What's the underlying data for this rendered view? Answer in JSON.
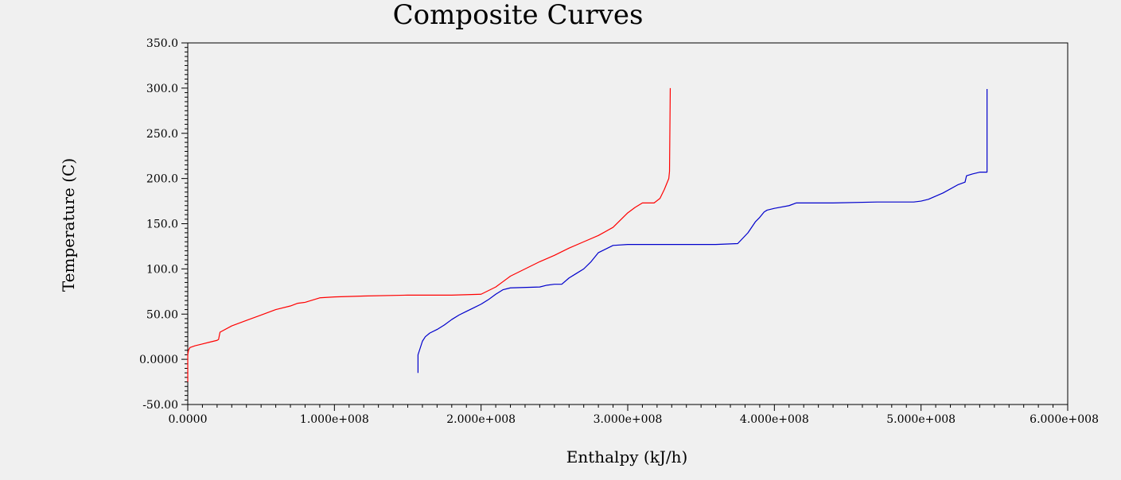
{
  "chart_data": {
    "type": "line",
    "title": "Composite Curves",
    "xlabel": "Enthalpy (kJ/h)",
    "ylabel": "Temperature (C)",
    "xlim": [
      0,
      600000000
    ],
    "ylim": [
      -50,
      350
    ],
    "x_ticks": [
      {
        "value": 0,
        "label": "0.0000"
      },
      {
        "value": 100000000,
        "label": "1.000e+008"
      },
      {
        "value": 200000000,
        "label": "2.000e+008"
      },
      {
        "value": 300000000,
        "label": "3.000e+008"
      },
      {
        "value": 400000000,
        "label": "4.000e+008"
      },
      {
        "value": 500000000,
        "label": "5.000e+008"
      },
      {
        "value": 600000000,
        "label": "6.000e+008"
      }
    ],
    "y_ticks": [
      {
        "value": -50,
        "label": "-50.00"
      },
      {
        "value": 0,
        "label": "0.0000"
      },
      {
        "value": 50,
        "label": "50.00"
      },
      {
        "value": 100,
        "label": "100.0"
      },
      {
        "value": 150,
        "label": "150.0"
      },
      {
        "value": 200,
        "label": "200.0"
      },
      {
        "value": 250,
        "label": "250.0"
      },
      {
        "value": 300,
        "label": "300.0"
      },
      {
        "value": 350,
        "label": "350.0"
      }
    ],
    "grid": false,
    "legend": "none",
    "series": [
      {
        "color": "#ff0000",
        "x": [
          0,
          0,
          500000,
          1500000,
          5000000,
          10000000,
          15000000,
          20000000,
          21000000,
          21500000,
          22000000,
          30000000,
          40000000,
          50000000,
          60000000,
          70000000,
          75000000,
          80000000,
          90000000,
          100000000,
          120000000,
          150000000,
          180000000,
          200000000,
          210000000,
          215000000,
          220000000,
          230000000,
          240000000,
          250000000,
          260000000,
          270000000,
          280000000,
          290000000,
          295000000,
          300000000,
          305000000,
          310000000,
          315000000,
          318000000,
          322000000,
          325000000,
          328000000,
          328500000,
          329000000
        ],
        "y": [
          -25,
          5,
          10,
          13,
          15,
          17,
          19,
          21,
          22,
          26,
          30,
          37,
          43,
          49,
          55,
          59,
          62,
          63,
          68,
          69,
          70,
          71,
          71,
          72,
          80,
          86,
          92,
          100,
          108,
          115,
          123,
          130,
          137,
          146,
          154,
          162,
          168,
          173,
          173,
          173,
          178,
          188,
          200,
          208,
          300
        ]
      },
      {
        "color": "#0000cc",
        "x": [
          157000000,
          157000000,
          158000000,
          160000000,
          162000000,
          165000000,
          170000000,
          175000000,
          180000000,
          185000000,
          190000000,
          195000000,
          200000000,
          205000000,
          210000000,
          215000000,
          220000000,
          240000000,
          245000000,
          250000000,
          255000000,
          260000000,
          265000000,
          270000000,
          275000000,
          280000000,
          290000000,
          300000000,
          320000000,
          350000000,
          360000000,
          375000000,
          382000000,
          387000000,
          390000000,
          393000000,
          395000000,
          400000000,
          410000000,
          415000000,
          440000000,
          470000000,
          495000000,
          500000000,
          505000000,
          515000000,
          525000000,
          530000000,
          531000000,
          535000000,
          540000000,
          545000000,
          545000000
        ],
        "y": [
          -15,
          5,
          10,
          20,
          25,
          29,
          33,
          38,
          44,
          49,
          53,
          57,
          61,
          66,
          72,
          77,
          79,
          80,
          82,
          83,
          83,
          90,
          95,
          100,
          108,
          118,
          126,
          127,
          127,
          127,
          127,
          128,
          140,
          152,
          157,
          163,
          165,
          167,
          170,
          173,
          173,
          174,
          174,
          175,
          177,
          184,
          193,
          196,
          203,
          205,
          207,
          207,
          299
        ]
      }
    ]
  }
}
